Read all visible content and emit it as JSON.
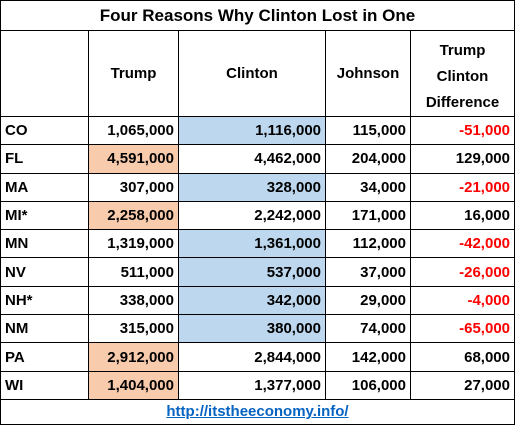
{
  "title": "Four Reasons Why Clinton Lost in One",
  "headers": {
    "state": "",
    "trump": "Trump",
    "clinton": "Clinton",
    "johnson": "Johnson",
    "difference_lines": [
      "Trump",
      "Clinton",
      "Difference"
    ]
  },
  "highlight_colors": {
    "trump_win": "#f8cbad",
    "clinton_win": "#bdd7ee",
    "negative_text": "#ff0000",
    "link": "#0563c1"
  },
  "rows": [
    {
      "state": "CO",
      "trump": "1,065,000",
      "clinton": "1,116,000",
      "johnson": "115,000",
      "difference": "-51,000",
      "winner": "clinton"
    },
    {
      "state": "FL",
      "trump": "4,591,000",
      "clinton": "4,462,000",
      "johnson": "204,000",
      "difference": "129,000",
      "winner": "trump"
    },
    {
      "state": "MA",
      "trump": "307,000",
      "clinton": "328,000",
      "johnson": "34,000",
      "difference": "-21,000",
      "winner": "clinton"
    },
    {
      "state": "MI*",
      "trump": "2,258,000",
      "clinton": "2,242,000",
      "johnson": "171,000",
      "difference": "16,000",
      "winner": "trump"
    },
    {
      "state": "MN",
      "trump": "1,319,000",
      "clinton": "1,361,000",
      "johnson": "112,000",
      "difference": "-42,000",
      "winner": "clinton"
    },
    {
      "state": "NV",
      "trump": "511,000",
      "clinton": "537,000",
      "johnson": "37,000",
      "difference": "-26,000",
      "winner": "clinton"
    },
    {
      "state": "NH*",
      "trump": "338,000",
      "clinton": "342,000",
      "johnson": "29,000",
      "difference": "-4,000",
      "winner": "clinton"
    },
    {
      "state": "NM",
      "trump": "315,000",
      "clinton": "380,000",
      "johnson": "74,000",
      "difference": "-65,000",
      "winner": "clinton"
    },
    {
      "state": "PA",
      "trump": "2,912,000",
      "clinton": "2,844,000",
      "johnson": "142,000",
      "difference": "68,000",
      "winner": "trump"
    },
    {
      "state": "WI",
      "trump": "1,404,000",
      "clinton": "1,377,000",
      "johnson": "106,000",
      "difference": "27,000",
      "winner": "trump"
    }
  ],
  "footer_link": "http://itstheeconomy.info/"
}
